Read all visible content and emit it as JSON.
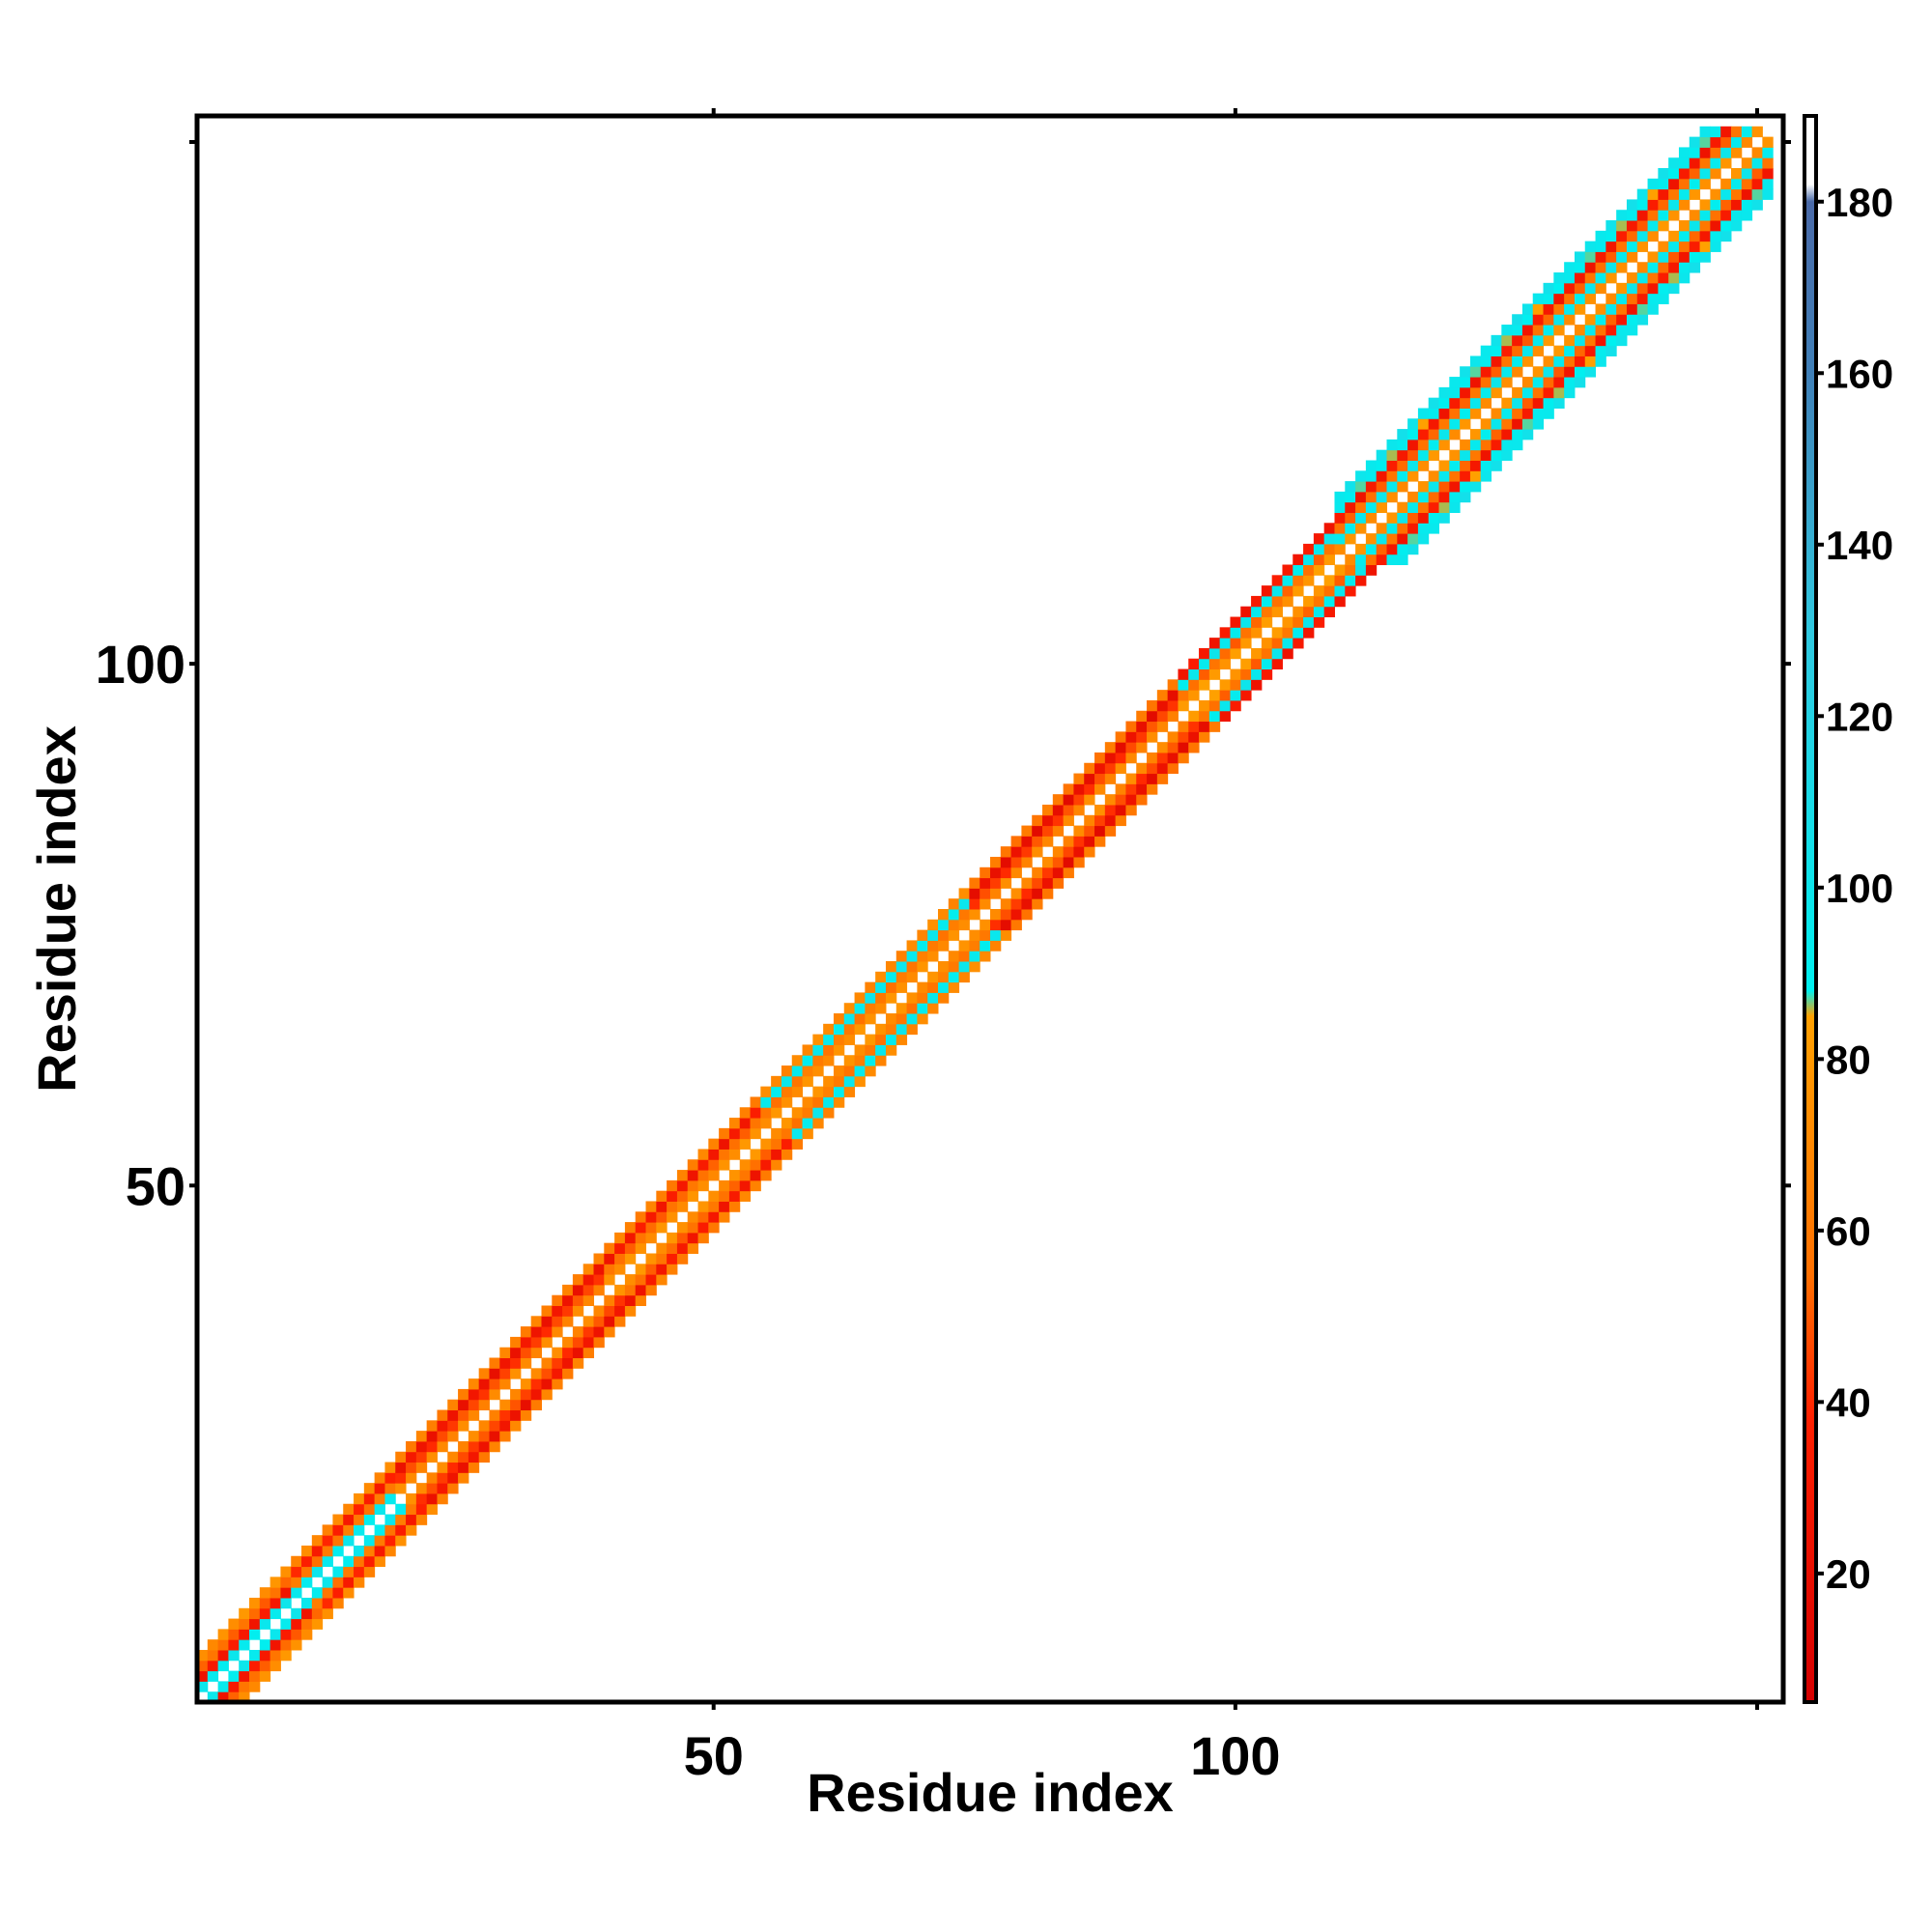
{
  "chart_data": {
    "type": "heatmap",
    "title": "",
    "xlabel": "Residue index",
    "ylabel": "Residue index",
    "xlim": [
      0.5,
      152.5
    ],
    "ylim": [
      0.5,
      152.5
    ],
    "xticks": [
      50,
      100
    ],
    "xtick_labels": [
      "50",
      "100"
    ],
    "yticks": [
      50,
      100
    ],
    "ytick_labels": [
      "50",
      "100"
    ],
    "extra_minor_ticks": [
      150
    ],
    "grid": false,
    "matrix": {
      "size": 151,
      "symmetric": true,
      "diagonal_value": null,
      "band_note": "contact map: nonzero cells only within a narrow band around the diagonal"
    },
    "band_segments": [
      {
        "from": 1,
        "to": 10,
        "offsets": [
          1,
          2,
          3,
          4
        ],
        "values": [
          95,
          30,
          55,
          75
        ]
      },
      {
        "from": 10,
        "to": 20,
        "offsets": [
          1,
          2,
          3,
          4
        ],
        "values": [
          95,
          60,
          35,
          70
        ]
      },
      {
        "from": 20,
        "to": 40,
        "offsets": [
          1,
          2,
          3,
          4
        ],
        "values": [
          70,
          45,
          25,
          65
        ]
      },
      {
        "from": 40,
        "to": 55,
        "offsets": [
          1,
          2,
          3,
          4
        ],
        "values": [
          75,
          55,
          30,
          65
        ]
      },
      {
        "from": 55,
        "to": 75,
        "offsets": [
          1,
          2,
          3,
          4
        ],
        "values": [
          75,
          60,
          95,
          70
        ]
      },
      {
        "from": 75,
        "to": 95,
        "offsets": [
          1,
          2,
          3,
          4
        ],
        "values": [
          70,
          45,
          20,
          60
        ]
      },
      {
        "from": 95,
        "to": 110,
        "offsets": [
          1,
          2,
          3,
          4
        ],
        "values": [
          80,
          55,
          95,
          30
        ]
      },
      {
        "from": 110,
        "to": 152,
        "offsets": [
          1,
          2,
          3,
          4,
          5,
          6
        ],
        "values": [
          75,
          95,
          55,
          30,
          90,
          100
        ]
      }
    ],
    "colorbar": {
      "range": [
        5,
        190
      ],
      "ticks": [
        20,
        40,
        60,
        80,
        100,
        120,
        140,
        160,
        180
      ],
      "tick_labels": [
        "20",
        "40",
        "60",
        "80",
        "100",
        "120",
        "140",
        "160",
        "180"
      ],
      "stops": [
        {
          "value": 5,
          "color": "#d40000"
        },
        {
          "value": 38,
          "color": "#ff2000"
        },
        {
          "value": 55,
          "color": "#ff7000"
        },
        {
          "value": 85,
          "color": "#ffa000"
        },
        {
          "value": 88,
          "color": "#00f0f0"
        },
        {
          "value": 130,
          "color": "#30c8e0"
        },
        {
          "value": 160,
          "color": "#4080b8"
        },
        {
          "value": 180,
          "color": "#4a6aa8"
        },
        {
          "value": 182,
          "color": "#ffffff"
        },
        {
          "value": 190,
          "color": "#ffffff"
        }
      ]
    }
  }
}
